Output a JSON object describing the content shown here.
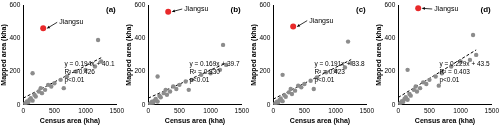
{
  "chart_data": [
    {
      "type": "scatter",
      "title": "(a)",
      "x_label": "Census area (kha)",
      "y_label": "Mapped area (kha)",
      "xlim": [
        0,
        1500
      ],
      "xticks": [
        0,
        500,
        1000,
        1500
      ],
      "ylim": [
        0,
        600
      ],
      "yticks": [
        0,
        200,
        400,
        600
      ],
      "grid": false,
      "series": [
        {
          "type": "scatter",
          "color": "#8c8c8c",
          "marker": "circle",
          "x": [
            20,
            40,
            60,
            80,
            100,
            120,
            150,
            180,
            200,
            250,
            280,
            300,
            350,
            150,
            400,
            450,
            500,
            600,
            650,
            700,
            850,
            1000,
            1150,
            1250,
            1200
          ],
          "values": [
            5,
            10,
            20,
            15,
            30,
            40,
            25,
            60,
            50,
            80,
            100,
            70,
            90,
            190,
            120,
            110,
            130,
            150,
            100,
            170,
            200,
            210,
            230,
            260,
            390
          ]
        },
        {
          "type": "scatter",
          "name": "Jiangsu",
          "color": "#e8292a",
          "marker": "circle",
          "x": [
            320
          ],
          "values": [
            460
          ]
        },
        {
          "type": "line",
          "color": "#000000",
          "line_style": "dashed",
          "x": [
            0,
            1250
          ],
          "values": [
            40,
            283
          ]
        }
      ],
      "annotations": [
        "y = 0.194x + 40.1",
        "R² = 0.426",
        "p<0.01"
      ]
    },
    {
      "type": "scatter",
      "title": "(b)",
      "x_label": "Census area (kha)",
      "y_label": "Mapped area (kha)",
      "xlim": [
        0,
        1500
      ],
      "xticks": [
        0,
        500,
        1000,
        1500
      ],
      "ylim": [
        0,
        600
      ],
      "yticks": [
        0,
        200,
        400,
        600
      ],
      "grid": false,
      "series": [
        {
          "type": "scatter",
          "color": "#8c8c8c",
          "marker": "circle",
          "x": [
            20,
            40,
            60,
            80,
            100,
            120,
            150,
            180,
            200,
            250,
            280,
            300,
            350,
            150,
            400,
            450,
            500,
            600,
            650,
            700,
            850,
            1000,
            1150,
            1250,
            1200
          ],
          "values": [
            5,
            8,
            18,
            12,
            25,
            35,
            20,
            55,
            45,
            70,
            90,
            60,
            80,
            170,
            110,
            95,
            120,
            140,
            90,
            150,
            180,
            190,
            210,
            240,
            360
          ]
        },
        {
          "type": "scatter",
          "name": "Jiangsu",
          "color": "#e8292a",
          "marker": "circle",
          "x": [
            320
          ],
          "values": [
            560
          ]
        },
        {
          "type": "line",
          "color": "#000000",
          "line_style": "dashed",
          "x": [
            0,
            1250
          ],
          "values": [
            40,
            251
          ]
        }
      ],
      "annotations": [
        "y = 0.169x + 39.7",
        "R² = 0.330",
        "p<0.01"
      ]
    },
    {
      "type": "scatter",
      "title": "(c)",
      "x_label": "Census area (kha)",
      "y_label": "Mapped area (kha)",
      "xlim": [
        0,
        1500
      ],
      "xticks": [
        0,
        500,
        1000,
        1500
      ],
      "ylim": [
        0,
        600
      ],
      "yticks": [
        0,
        200,
        400,
        600
      ],
      "grid": false,
      "series": [
        {
          "type": "scatter",
          "color": "#8c8c8c",
          "marker": "circle",
          "x": [
            20,
            40,
            60,
            80,
            100,
            120,
            150,
            180,
            200,
            250,
            280,
            300,
            350,
            150,
            400,
            450,
            500,
            600,
            650,
            700,
            850,
            1000,
            1150,
            1250,
            1200
          ],
          "values": [
            4,
            9,
            18,
            14,
            28,
            38,
            22,
            58,
            48,
            75,
            95,
            65,
            85,
            180,
            115,
            105,
            125,
            145,
            95,
            165,
            195,
            205,
            225,
            250,
            380
          ]
        },
        {
          "type": "scatter",
          "name": "Jiangsu",
          "color": "#e8292a",
          "marker": "circle",
          "x": [
            320
          ],
          "values": [
            470
          ]
        },
        {
          "type": "line",
          "color": "#000000",
          "line_style": "dashed",
          "x": [
            0,
            1250
          ],
          "values": [
            34,
            272
          ]
        }
      ],
      "annotations": [
        "y = 0.191x + 33.8",
        "R² = 0.423",
        "p<0.01"
      ]
    },
    {
      "type": "scatter",
      "title": "(d)",
      "x_label": "Census area (kha)",
      "y_label": "Mapped area (kha)",
      "xlim": [
        0,
        1500
      ],
      "xticks": [
        0,
        500,
        1000,
        1500
      ],
      "ylim": [
        0,
        600
      ],
      "yticks": [
        0,
        200,
        400,
        600
      ],
      "grid": false,
      "series": [
        {
          "type": "scatter",
          "color": "#8c8c8c",
          "marker": "circle",
          "x": [
            20,
            40,
            60,
            80,
            100,
            120,
            150,
            180,
            200,
            250,
            280,
            300,
            350,
            150,
            400,
            450,
            500,
            600,
            650,
            700,
            850,
            1000,
            1150,
            1250,
            1200
          ],
          "values": [
            6,
            12,
            22,
            18,
            35,
            45,
            30,
            65,
            55,
            90,
            110,
            80,
            100,
            210,
            135,
            125,
            150,
            170,
            115,
            190,
            230,
            260,
            270,
            300,
            420
          ]
        },
        {
          "type": "scatter",
          "name": "Jiangsu",
          "color": "#e8292a",
          "marker": "circle",
          "x": [
            320
          ],
          "values": [
            580
          ]
        },
        {
          "type": "line",
          "color": "#000000",
          "line_style": "dashed",
          "x": [
            0,
            1250
          ],
          "values": [
            44,
            330
          ]
        }
      ],
      "annotations": [
        "y = 0.229x + 43.5",
        "R² = 0.403",
        "p<0.01"
      ]
    }
  ]
}
